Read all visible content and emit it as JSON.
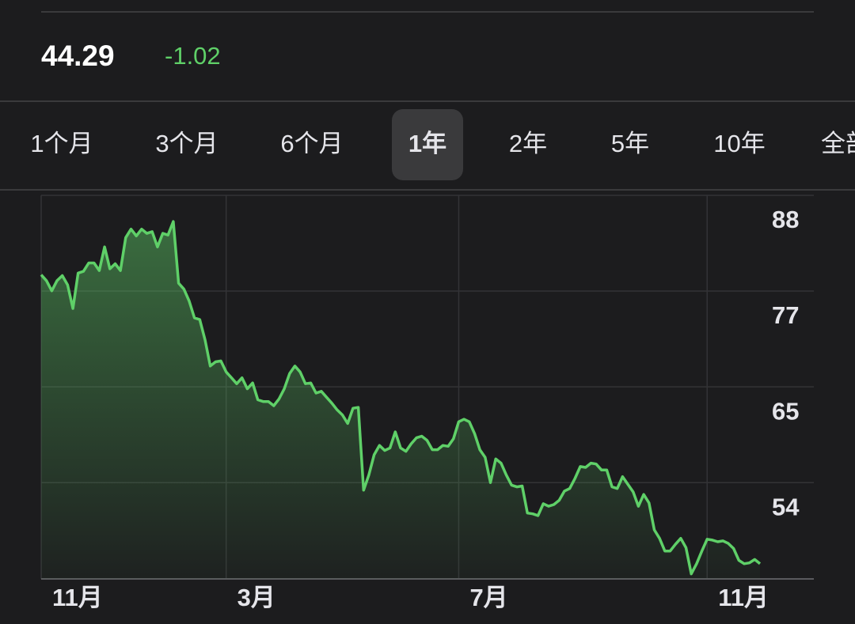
{
  "header": {
    "price": "44.29",
    "change": "-1.02"
  },
  "tabs": [
    "1个月",
    "3个月",
    "6个月",
    "1年",
    "2年",
    "5年",
    "10年",
    "全部"
  ],
  "selected_tab": 3,
  "chart_data": {
    "type": "area",
    "color": "#5fd068",
    "values": [
      78.6,
      77.9,
      76.7,
      77.9,
      78.5,
      77.4,
      74.6,
      78.8,
      79.0,
      80.0,
      80.0,
      79.1,
      81.9,
      79.3,
      79.9,
      79.1,
      83.0,
      84.0,
      83.2,
      84.0,
      83.5,
      83.7,
      81.9,
      83.5,
      83.3,
      84.9,
      77.6,
      76.9,
      75.5,
      73.5,
      73.3,
      70.9,
      67.8,
      68.3,
      68.4,
      67.1,
      66.4,
      65.7,
      66.4,
      65.1,
      65.8,
      63.8,
      63.6,
      63.6,
      63.1,
      63.9,
      65.1,
      66.9,
      67.8,
      67.1,
      65.7,
      65.8,
      64.6,
      64.8,
      64.1,
      63.4,
      62.6,
      62.0,
      61.0,
      62.8,
      62.9,
      53.1,
      54.9,
      57.3,
      58.4,
      57.8,
      58.1,
      60.0,
      58.1,
      57.7,
      58.6,
      59.3,
      59.5,
      59.0,
      57.9,
      57.9,
      58.4,
      58.3,
      59.2,
      61.2,
      61.5,
      61.2,
      59.8,
      57.9,
      57.0,
      54.0,
      56.8,
      56.3,
      54.9,
      53.7,
      53.5,
      53.6,
      50.4,
      50.3,
      50.1,
      51.5,
      51.2,
      51.4,
      51.9,
      53.0,
      53.3,
      54.5,
      55.9,
      55.8,
      56.3,
      56.2,
      55.5,
      55.5,
      53.5,
      53.3,
      54.7,
      53.8,
      52.9,
      51.2,
      52.6,
      51.6,
      48.4,
      47.4,
      45.9,
      45.9,
      46.7,
      47.4,
      46.3,
      43.2,
      44.4,
      45.9,
      47.3,
      47.2,
      47.0,
      47.1,
      46.8,
      46.2,
      44.8,
      44.4,
      44.5,
      44.9,
      44.4
    ],
    "xlim": [
      0,
      136
    ],
    "xticks": [
      {
        "value": 0,
        "label": "11月"
      },
      {
        "value": 35,
        "label": "3月"
      },
      {
        "value": 79,
        "label": "7月"
      },
      {
        "value": 126,
        "label": "11月"
      }
    ],
    "ylim": [
      42.6,
      88
    ],
    "yticks": [
      88,
      {
        "value": 76.67,
        "label": "77"
      },
      {
        "value": 65.33,
        "label": "65"
      },
      54
    ],
    "grid": true
  }
}
